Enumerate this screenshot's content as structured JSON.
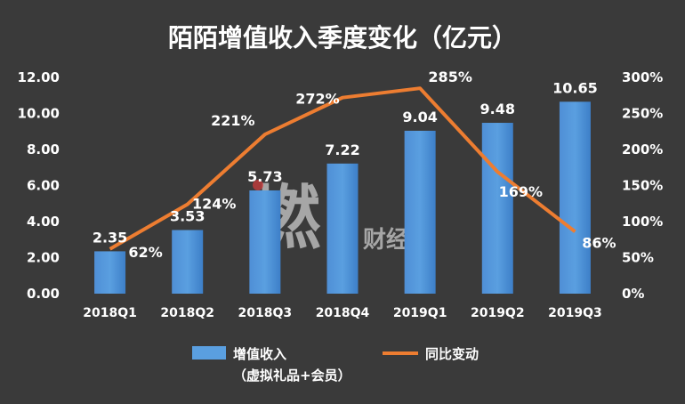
{
  "chart_data": {
    "type": "bar",
    "title": "陌陌增值收入季度变化（亿元）",
    "categories": [
      "2018Q1",
      "2018Q2",
      "2018Q3",
      "2018Q4",
      "2019Q1",
      "2019Q2",
      "2019Q3"
    ],
    "series": [
      {
        "name": "增值收入",
        "name_note": "（虚拟礼品+会员）",
        "type": "bar",
        "axis": "left",
        "values": [
          2.35,
          3.53,
          5.73,
          7.22,
          9.04,
          9.48,
          10.65
        ],
        "labels": [
          "2.35",
          "3.53",
          "5.73",
          "7.22",
          "9.04",
          "9.48",
          "10.65"
        ],
        "color": "#5a9fe0"
      },
      {
        "name": "同比变动",
        "type": "line",
        "axis": "right",
        "values": [
          62,
          124,
          221,
          272,
          285,
          169,
          86
        ],
        "labels": [
          "62%",
          "124%",
          "221%",
          "272%",
          "285%",
          "169%",
          "86%"
        ],
        "color": "#ed7d31"
      }
    ],
    "y_left": {
      "ylim": [
        0,
        12
      ],
      "ticks": [
        "0.00",
        "2.00",
        "4.00",
        "6.00",
        "8.00",
        "10.00",
        "12.00"
      ]
    },
    "y_right": {
      "ylim": [
        0,
        300
      ],
      "ticks": [
        "0%",
        "50%",
        "100%",
        "150%",
        "200%",
        "250%",
        "300%"
      ]
    },
    "grid": false,
    "legend": "bottom",
    "watermark": {
      "main": "燃",
      "sub": "财经"
    }
  }
}
